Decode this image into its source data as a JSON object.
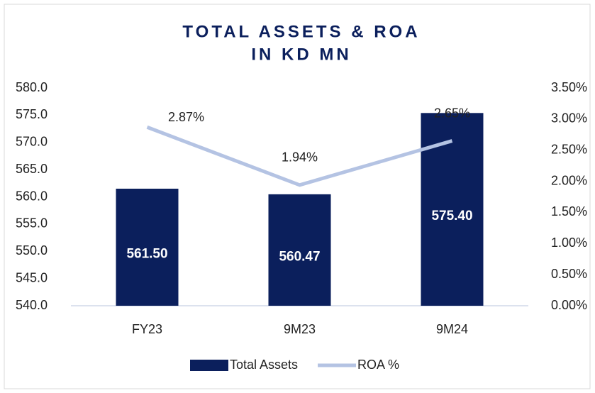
{
  "chart_data": {
    "type": "bar_line",
    "title": [
      "TOTAL ASSETS & ROA",
      "IN KD MN"
    ],
    "categories": [
      "FY23",
      "9M23",
      "9M24"
    ],
    "series": [
      {
        "name": "Total Assets",
        "type": "bar",
        "color": "#0b1f5c",
        "values": [
          561.5,
          560.47,
          575.4
        ],
        "value_labels": [
          "561.50",
          "560.47",
          "575.40"
        ]
      },
      {
        "name": "ROA %",
        "type": "line",
        "axis": "y2",
        "color": "#b4c3e3",
        "values": [
          2.87,
          1.94,
          2.65
        ],
        "value_labels": [
          "2.87%",
          "1.94%",
          "2.65%"
        ]
      }
    ],
    "ylim": [
      540,
      580
    ],
    "yticks": [
      {
        "value": 540,
        "label": "540.0"
      },
      {
        "value": 545,
        "label": "545.0"
      },
      {
        "value": 550,
        "label": "550.0"
      },
      {
        "value": 555,
        "label": "555.0"
      },
      {
        "value": 560,
        "label": "560.0"
      },
      {
        "value": 565,
        "label": "565.0"
      },
      {
        "value": 570,
        "label": "570.0"
      },
      {
        "value": 575,
        "label": "575.0"
      },
      {
        "value": 580,
        "label": "580.0"
      }
    ],
    "y2lim": [
      0,
      3.5
    ],
    "y2ticks": [
      {
        "value": 0,
        "label": "0.00%"
      },
      {
        "value": 0.5,
        "label": "0.50%"
      },
      {
        "value": 1,
        "label": "1.00%"
      },
      {
        "value": 1.5,
        "label": "1.50%"
      },
      {
        "value": 2,
        "label": "2.00%"
      },
      {
        "value": 2.5,
        "label": "2.50%"
      },
      {
        "value": 3,
        "label": "3.00%"
      },
      {
        "value": 3.5,
        "label": "3.50%"
      }
    ],
    "legend": "bottom"
  }
}
